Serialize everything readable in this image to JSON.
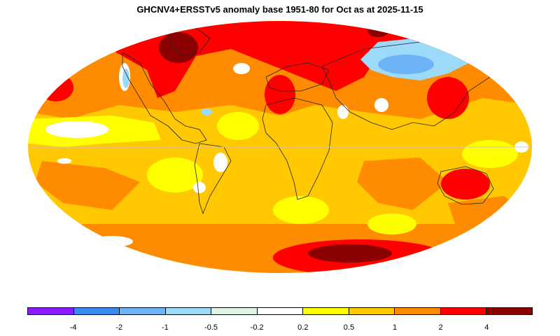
{
  "title": "GHCNV4+ERSSTv5 anomaly base 1951-80 for Oct as at 2025-11-15",
  "legend": {
    "colors": [
      "#8c1bff",
      "#3b8cf0",
      "#6cb4f5",
      "#9dd9f8",
      "#dff5e3",
      "#ffffff",
      "#ffff00",
      "#ffc800",
      "#ff8c00",
      "#ff0000",
      "#8b0000"
    ],
    "labels": [
      "-4",
      "-2",
      "-1",
      "-0.5",
      "-0.2",
      "0.2",
      "0.5",
      "1",
      "2",
      "4"
    ]
  },
  "map": {
    "background_color": "#ffc800",
    "warm_color": "#ff8c00",
    "hot_color": "#ff0000",
    "extreme_color": "#8b0000",
    "mild_color": "#ffff00",
    "cool_color": "#9dd9f8",
    "cold_color": "#6cb4f5",
    "land_outline_color": "#222222"
  }
}
